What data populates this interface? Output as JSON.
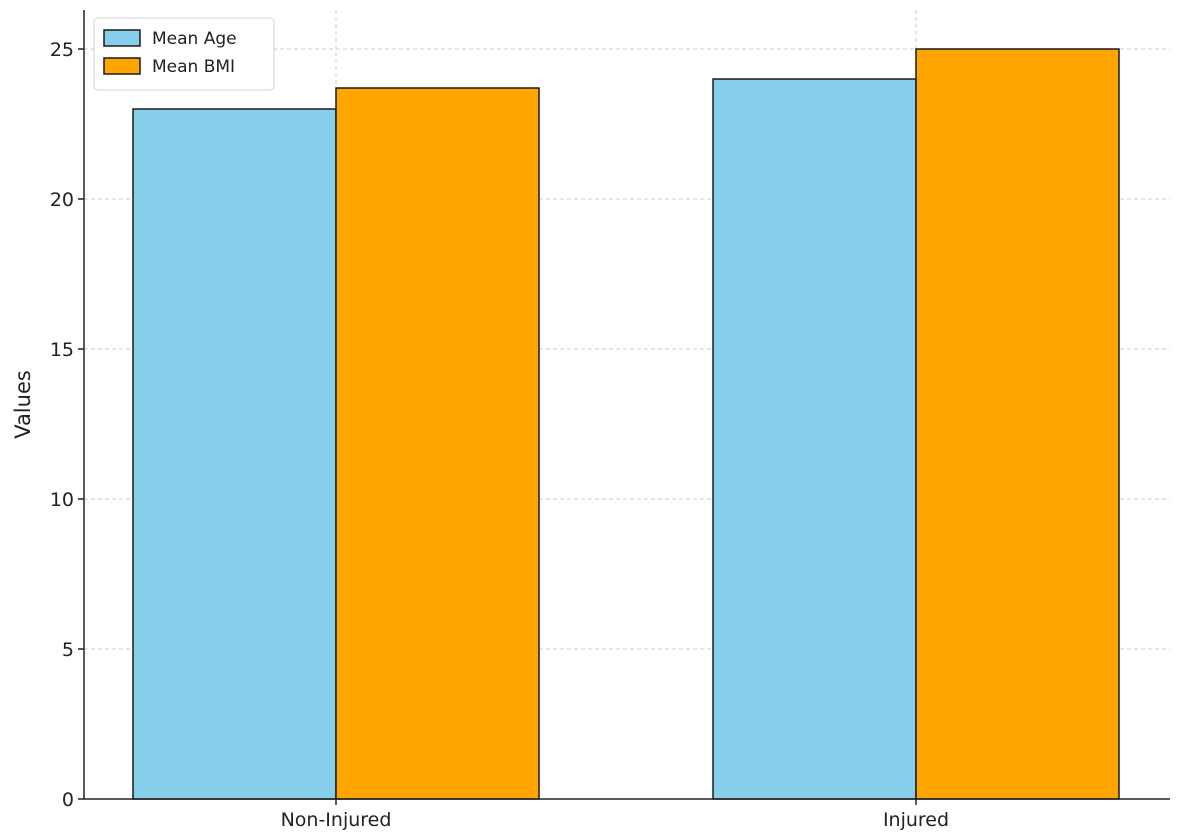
{
  "chart_data": {
    "type": "bar",
    "title": "",
    "xlabel": "",
    "ylabel": "Values",
    "categories": [
      "Non-Injured",
      "Injured"
    ],
    "series": [
      {
        "name": "Mean Age",
        "values": [
          23.0,
          24.0
        ],
        "color": "#87CEEB"
      },
      {
        "name": "Mean BMI",
        "values": [
          23.7,
          25.0
        ],
        "color": "#FFA500"
      }
    ],
    "ylim": [
      0,
      26.3
    ],
    "yticks": [
      0,
      5,
      10,
      15,
      20,
      25
    ],
    "grid": true,
    "legend_position": "top-left"
  }
}
